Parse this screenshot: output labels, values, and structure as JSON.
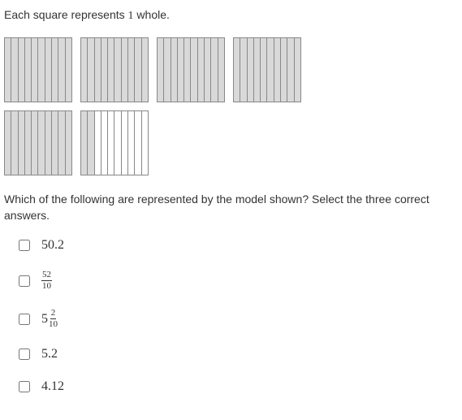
{
  "intro": {
    "prefix": "Each square represents ",
    "number": "1",
    "suffix": " whole."
  },
  "model": {
    "square_fill_color": "#d9d9d9",
    "square_empty_color": "#ffffff",
    "border_color": "#888888",
    "tenths_per_square": 10,
    "rows": [
      {
        "squares": [
          10,
          10,
          10,
          10
        ]
      },
      {
        "squares": [
          10,
          2
        ]
      }
    ]
  },
  "question": "Which of the following are represented by the model shown?  Select the three correct answers.",
  "options": [
    {
      "type": "decimal",
      "value": "50.2"
    },
    {
      "type": "fraction",
      "numerator": "52",
      "denominator": "10"
    },
    {
      "type": "mixed",
      "whole": "5",
      "numerator": "2",
      "denominator": "10"
    },
    {
      "type": "decimal",
      "value": "5.2"
    },
    {
      "type": "decimal",
      "value": "4.12"
    }
  ]
}
